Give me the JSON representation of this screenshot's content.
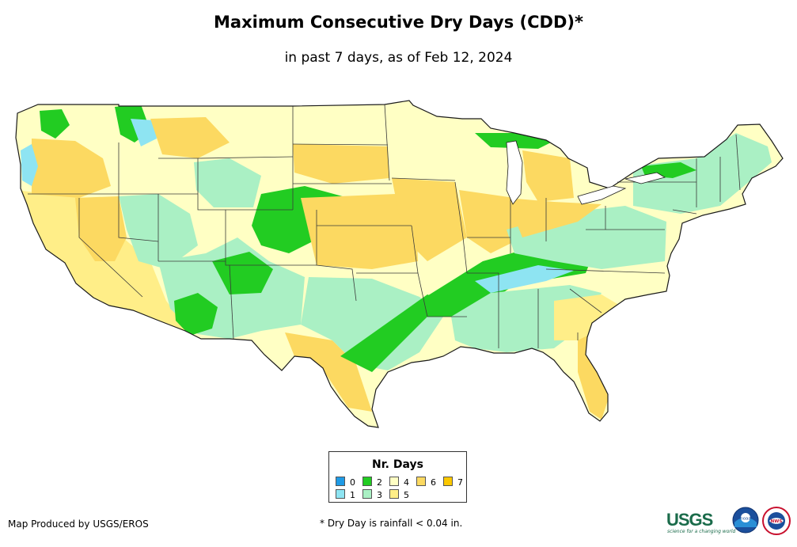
{
  "title": "Maximum Consecutive Dry Days (CDD)*",
  "subtitle": "in past 7 days, as of Feb 12, 2024",
  "legend": {
    "title": "Nr. Days",
    "items": [
      {
        "label": "0",
        "color": "#1f9be6"
      },
      {
        "label": "1",
        "color": "#8ee4f2"
      },
      {
        "label": "2",
        "color": "#22cc22"
      },
      {
        "label": "3",
        "color": "#aaf0c4"
      },
      {
        "label": "4",
        "color": "#ffffc4"
      },
      {
        "label": "5",
        "color": "#ffee88"
      },
      {
        "label": "6",
        "color": "#fcd961"
      },
      {
        "label": "7",
        "color": "#fcc800"
      }
    ]
  },
  "credits": {
    "producer": "Map Produced by USGS/EROS",
    "footnote": "* Dry Day is rainfall < 0.04 in.",
    "usgs_logo": "USGS",
    "usgs_tagline": "science for a changing world",
    "noaa_logo": "noaa",
    "nws_logo": "NWS"
  }
}
